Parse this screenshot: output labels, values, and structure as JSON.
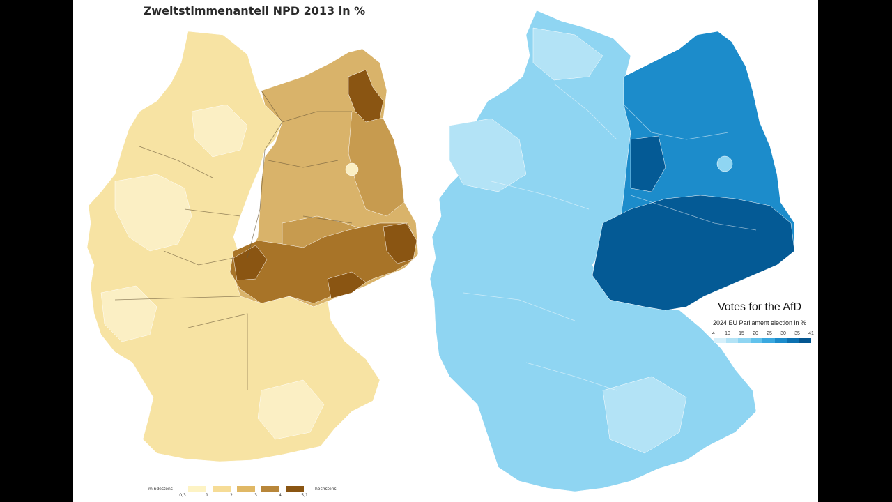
{
  "left_map": {
    "title": "Zweitstimmenanteil NPD 2013 in %",
    "legend": {
      "low_label": "mindestens",
      "high_label": "höchstens",
      "ticks": [
        "0,3",
        "1",
        "2",
        "3",
        "4",
        "5,1"
      ],
      "colors": [
        "#fdf3c4",
        "#f6dc96",
        "#e0b865",
        "#b8863a",
        "#8a5512"
      ]
    },
    "colors": {
      "west": "#f7e3a3",
      "west_light": "#fbefc4",
      "east": "#d9b36a",
      "east_mid": "#c79b4f",
      "east_dark": "#a87428",
      "east_darkest": "#8a5512"
    }
  },
  "right_map": {
    "title": "Votes for the AfD",
    "subtitle": "2024 EU Parliament election in %",
    "legend": {
      "ticks": [
        "4",
        "10",
        "15",
        "20",
        "25",
        "30",
        "35",
        "41"
      ],
      "colors": [
        "#d6f0fb",
        "#b3e3f6",
        "#8fd5f2",
        "#62c2ec",
        "#3aa8df",
        "#1c8ccb",
        "#0b70b0",
        "#045690"
      ]
    },
    "colors": {
      "west": "#8fd5f2",
      "west_light": "#b3e3f6",
      "east": "#1c8ccb",
      "east_dark": "#045a95"
    }
  }
}
